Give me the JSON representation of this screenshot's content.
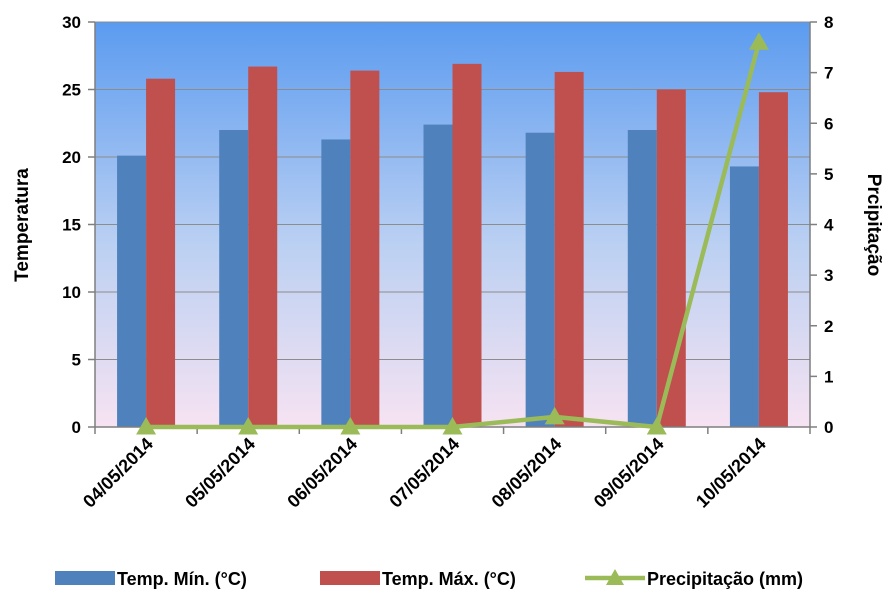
{
  "chart_data": {
    "type": "bar",
    "categories": [
      "04/05/2014",
      "05/05/2014",
      "06/05/2014",
      "07/05/2014",
      "08/05/2014",
      "09/05/2014",
      "10/05/2014"
    ],
    "series": [
      {
        "name": "Temp. Mín. (°C)",
        "type": "bar",
        "axis": "left",
        "color": "#4F81BD",
        "values": [
          20.1,
          22.0,
          21.3,
          22.4,
          21.8,
          22.0,
          19.3
        ]
      },
      {
        "name": "Temp. Máx. (°C)",
        "type": "bar",
        "axis": "left",
        "color": "#C0504D",
        "values": [
          25.8,
          26.7,
          26.4,
          26.9,
          26.3,
          25.0,
          24.8
        ]
      },
      {
        "name": "Precipitação (mm)",
        "type": "line",
        "axis": "right",
        "color": "#9BBB59",
        "marker": "triangle",
        "values": [
          0,
          0,
          0,
          0,
          0.2,
          0,
          7.6
        ]
      }
    ],
    "ylabel": "Temperatura",
    "y2label": "Prcipitação",
    "ylim": [
      0,
      30
    ],
    "y2lim": [
      0,
      8
    ],
    "yticks": [
      "0",
      "5",
      "10",
      "15",
      "20",
      "25",
      "30"
    ],
    "y2ticks": [
      "0",
      "1",
      "2",
      "3",
      "4",
      "5",
      "6",
      "7",
      "8"
    ],
    "grid": true,
    "legend_position": "bottom",
    "plot_background": "gradient blue to pink"
  }
}
